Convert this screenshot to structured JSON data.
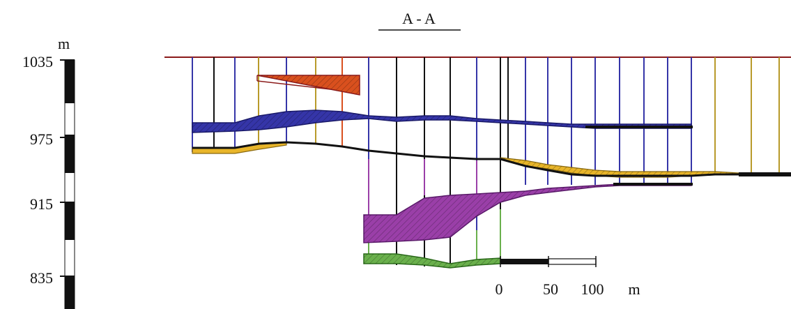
{
  "title": "A - A",
  "vertical_scale": {
    "unit": "m",
    "ticks": [
      {
        "value": 1035,
        "label": "1035"
      },
      {
        "value": 975,
        "label": "975"
      },
      {
        "value": 915,
        "label": "915"
      },
      {
        "value": 835,
        "label": "835"
      }
    ]
  },
  "horizontal_scale": {
    "unit": "m",
    "ticks": [
      {
        "value": 0,
        "label": "0"
      },
      {
        "value": 50,
        "label": "50"
      },
      {
        "value": 100,
        "label": "100"
      }
    ]
  },
  "colors": {
    "surface": "#8b1a1a",
    "red_body": "#d9501e",
    "blue_body": "#3535a8",
    "yellow_body": "#e8b52a",
    "purple_body": "#9a3fa8",
    "green_body": "#6ab04c",
    "black_line": "#111111",
    "yellow_drill": "#b89a2a"
  }
}
